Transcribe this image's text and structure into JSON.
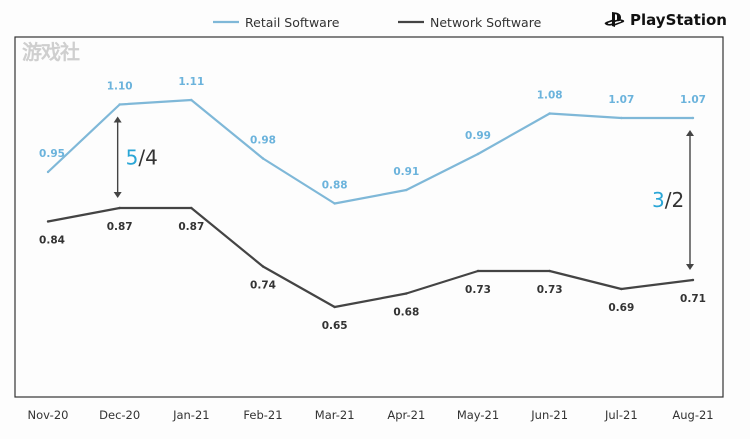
{
  "watermark": "游戏社",
  "brand": {
    "name": "PlayStation"
  },
  "chart_data": {
    "type": "line",
    "title": "",
    "xlabel": "",
    "ylabel": "",
    "categories": [
      "Nov-20",
      "Dec-20",
      "Jan-21",
      "Feb-21",
      "Mar-21",
      "Apr-21",
      "May-21",
      "Jun-21",
      "Jul-21",
      "Aug-21"
    ],
    "series": [
      {
        "name": "Retail Software",
        "color": "#7fb8d8",
        "label_color": "#6bb3dc",
        "values": [
          0.95,
          1.1,
          1.11,
          0.98,
          0.88,
          0.91,
          0.99,
          1.08,
          1.07,
          1.07
        ],
        "labels": [
          "0.95",
          "1.10",
          "1.11",
          "0.98",
          "0.88",
          "0.91",
          "0.99",
          "1.08",
          "1.07",
          "1.07"
        ]
      },
      {
        "name": "Network Software",
        "color": "#444444",
        "label_color": "#333333",
        "values": [
          0.84,
          0.87,
          0.87,
          0.74,
          0.65,
          0.68,
          0.73,
          0.73,
          0.69,
          0.71
        ],
        "labels": [
          "0.84",
          "0.87",
          "0.87",
          "0.74",
          "0.65",
          "0.68",
          "0.73",
          "0.73",
          "0.69",
          "0.71"
        ]
      }
    ],
    "ylim": [
      0.45,
      1.25
    ],
    "legend": "top",
    "grid": false,
    "annotations": [
      {
        "category": "Dec-20",
        "numerator": "5",
        "separator": "/",
        "denominator": "4"
      },
      {
        "category": "Aug-21",
        "numerator": "3",
        "separator": "/",
        "denominator": "2"
      }
    ]
  }
}
